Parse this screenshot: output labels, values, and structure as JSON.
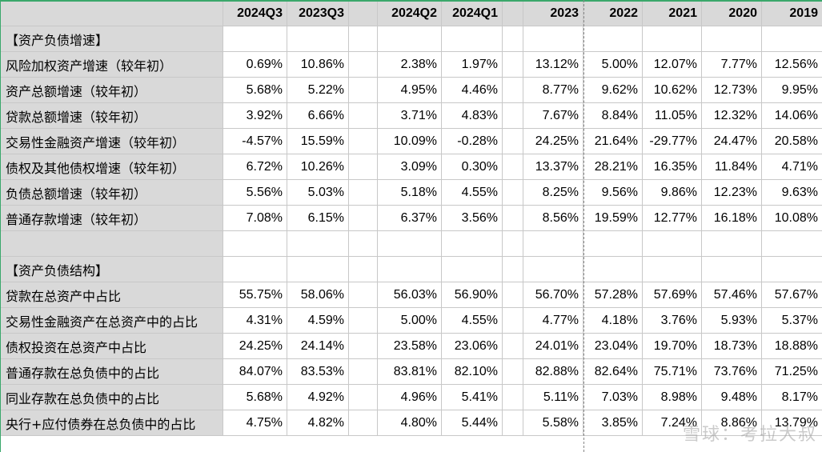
{
  "columns": [
    "",
    "2024Q3",
    "2023Q3",
    "",
    "2024Q2",
    "2024Q1",
    "",
    "2023",
    "2022",
    "2021",
    "2020",
    "2019"
  ],
  "rows": [
    {
      "label": "【资产负债增速】",
      "type": "section",
      "values": [
        "",
        "",
        "",
        "",
        "",
        "",
        "",
        "",
        "",
        "",
        ""
      ]
    },
    {
      "label": "风险加权资产增速（较年初）",
      "type": "data",
      "values": [
        "0.69%",
        "10.86%",
        "",
        "2.38%",
        "1.97%",
        "",
        "13.12%",
        "5.00%",
        "12.07%",
        "7.77%",
        "12.56%"
      ]
    },
    {
      "label": "资产总额增速（较年初）",
      "type": "data",
      "values": [
        "5.68%",
        "5.22%",
        "",
        "4.95%",
        "4.46%",
        "",
        "8.77%",
        "9.62%",
        "10.62%",
        "12.73%",
        "9.95%"
      ]
    },
    {
      "label": "贷款总额增速（较年初）",
      "type": "data",
      "values": [
        "3.92%",
        "6.66%",
        "",
        "3.71%",
        "4.83%",
        "",
        "7.67%",
        "8.84%",
        "11.05%",
        "12.32%",
        "14.06%"
      ]
    },
    {
      "label": "交易性金融资产增速（较年初）",
      "type": "data",
      "values": [
        "-4.57%",
        "15.59%",
        "",
        "10.09%",
        "-0.28%",
        "",
        "24.25%",
        "21.64%",
        "-29.77%",
        "24.47%",
        "20.58%"
      ]
    },
    {
      "label": "债权及其他债权增速（较年初）",
      "type": "data",
      "values": [
        "6.72%",
        "10.26%",
        "",
        "3.09%",
        "0.30%",
        "",
        "13.37%",
        "28.21%",
        "16.35%",
        "11.84%",
        "4.71%"
      ]
    },
    {
      "label": "负债总额增速（较年初）",
      "type": "data",
      "values": [
        "5.56%",
        "5.03%",
        "",
        "5.18%",
        "4.55%",
        "",
        "8.25%",
        "9.56%",
        "9.86%",
        "12.23%",
        "9.63%"
      ]
    },
    {
      "label": "普通存款增速（较年初）",
      "type": "data",
      "values": [
        "7.08%",
        "6.15%",
        "",
        "6.37%",
        "3.56%",
        "",
        "8.56%",
        "19.59%",
        "12.77%",
        "16.18%",
        "10.08%"
      ]
    },
    {
      "label": "",
      "type": "blank",
      "values": [
        "",
        "",
        "",
        "",
        "",
        "",
        "",
        "",
        "",
        "",
        ""
      ]
    },
    {
      "label": "【资产负债结构】",
      "type": "section",
      "values": [
        "",
        "",
        "",
        "",
        "",
        "",
        "",
        "",
        "",
        "",
        ""
      ]
    },
    {
      "label": "贷款在总资产中占比",
      "type": "data",
      "values": [
        "55.75%",
        "58.06%",
        "",
        "56.03%",
        "56.90%",
        "",
        "56.70%",
        "57.28%",
        "57.69%",
        "57.46%",
        "57.67%"
      ]
    },
    {
      "label": "交易性金融资产在总资产中的占比",
      "type": "data",
      "values": [
        "4.31%",
        "4.59%",
        "",
        "5.00%",
        "4.55%",
        "",
        "4.77%",
        "4.18%",
        "3.76%",
        "5.93%",
        "5.37%"
      ]
    },
    {
      "label": "债权投资在总资产中占比",
      "type": "data",
      "values": [
        "24.25%",
        "24.14%",
        "",
        "23.58%",
        "23.06%",
        "",
        "24.01%",
        "23.04%",
        "19.70%",
        "18.73%",
        "18.88%"
      ]
    },
    {
      "label": "普通存款在总负债中的占比",
      "type": "data",
      "values": [
        "84.07%",
        "83.53%",
        "",
        "83.81%",
        "82.10%",
        "",
        "82.88%",
        "82.64%",
        "75.71%",
        "73.76%",
        "71.25%"
      ]
    },
    {
      "label": "同业存款在总负债中的占比",
      "type": "data",
      "values": [
        "5.68%",
        "4.92%",
        "",
        "4.96%",
        "5.41%",
        "",
        "5.11%",
        "7.03%",
        "8.98%",
        "9.48%",
        "8.17%"
      ]
    },
    {
      "label": "央行+应付债券在总负债中的占比",
      "type": "data",
      "values": [
        "4.75%",
        "4.82%",
        "",
        "4.80%",
        "5.44%",
        "",
        "5.58%",
        "3.85%",
        "7.24%",
        "8.86%",
        "13.79%"
      ]
    }
  ],
  "watermark": "雪球：考拉大叔"
}
